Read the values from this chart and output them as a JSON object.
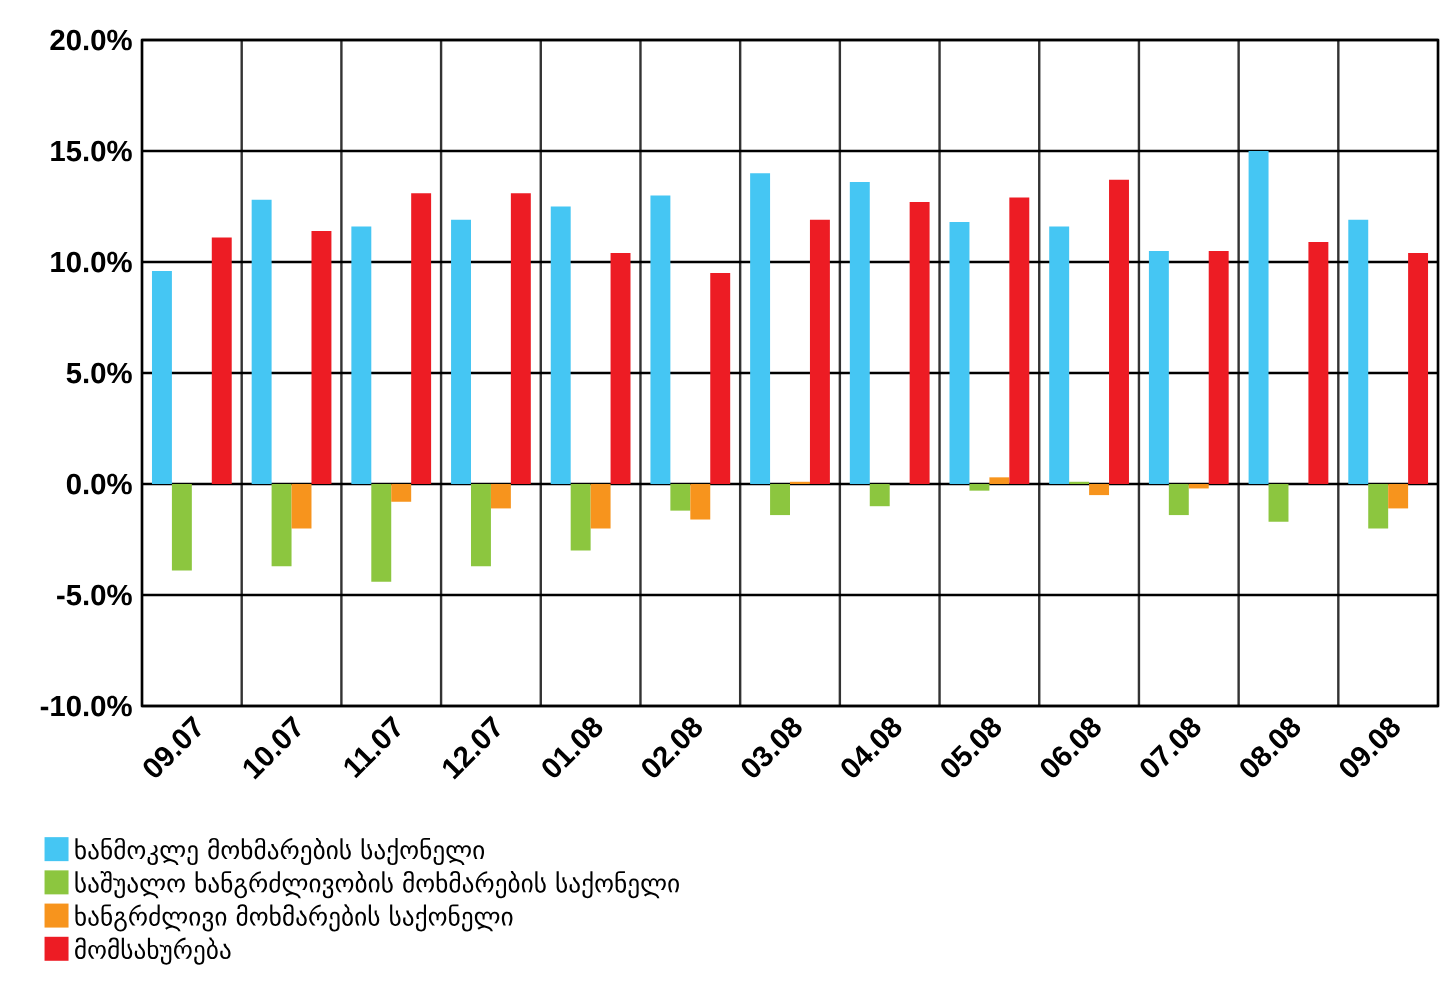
{
  "chart_data": {
    "type": "bar",
    "categories": [
      "09.07",
      "10.07",
      "11.07",
      "12.07",
      "01.08",
      "02.08",
      "03.08",
      "04.08",
      "05.08",
      "06.08",
      "07.08",
      "08.08",
      "09.08"
    ],
    "series": [
      {
        "name": "ხანმოკლე მოხმარების საქონელი",
        "color": "#45c6f3",
        "values": [
          9.6,
          12.8,
          11.6,
          11.9,
          12.5,
          13.0,
          14.0,
          13.6,
          11.8,
          11.6,
          10.5,
          15.0,
          11.9
        ]
      },
      {
        "name": "საშუალო ხანგრძლივობის მოხმარების საქონელი",
        "color": "#8cc63f",
        "values": [
          -3.9,
          -3.7,
          -4.4,
          -3.7,
          -3.0,
          -1.2,
          -1.4,
          -1.0,
          -0.3,
          0.1,
          -1.4,
          -1.7,
          -2.0
        ]
      },
      {
        "name": "ხანგრძლივი მოხმარების საქონელი",
        "color": "#f7941d",
        "values": [
          0.0,
          -2.0,
          -0.8,
          -1.1,
          -2.0,
          -1.6,
          0.1,
          0.0,
          0.3,
          -0.5,
          -0.2,
          0.0,
          -1.1
        ]
      },
      {
        "name": "მომსახურება",
        "color": "#ed1c24",
        "values": [
          11.1,
          11.4,
          13.1,
          13.1,
          10.4,
          9.5,
          11.9,
          12.7,
          12.9,
          13.7,
          10.5,
          10.9,
          10.4
        ]
      }
    ],
    "ylim": [
      -10,
      20
    ],
    "yticks": [
      {
        "value": -10,
        "label": "-10.0%"
      },
      {
        "value": -5,
        "label": "-5.0%"
      },
      {
        "value": 0,
        "label": "0.0%"
      },
      {
        "value": 5,
        "label": "5.0%"
      },
      {
        "value": 10,
        "label": "10.0%"
      },
      {
        "value": 15,
        "label": "15.0%"
      },
      {
        "value": 20,
        "label": "20.0%"
      }
    ],
    "grid": true,
    "legend": "bottom left"
  }
}
